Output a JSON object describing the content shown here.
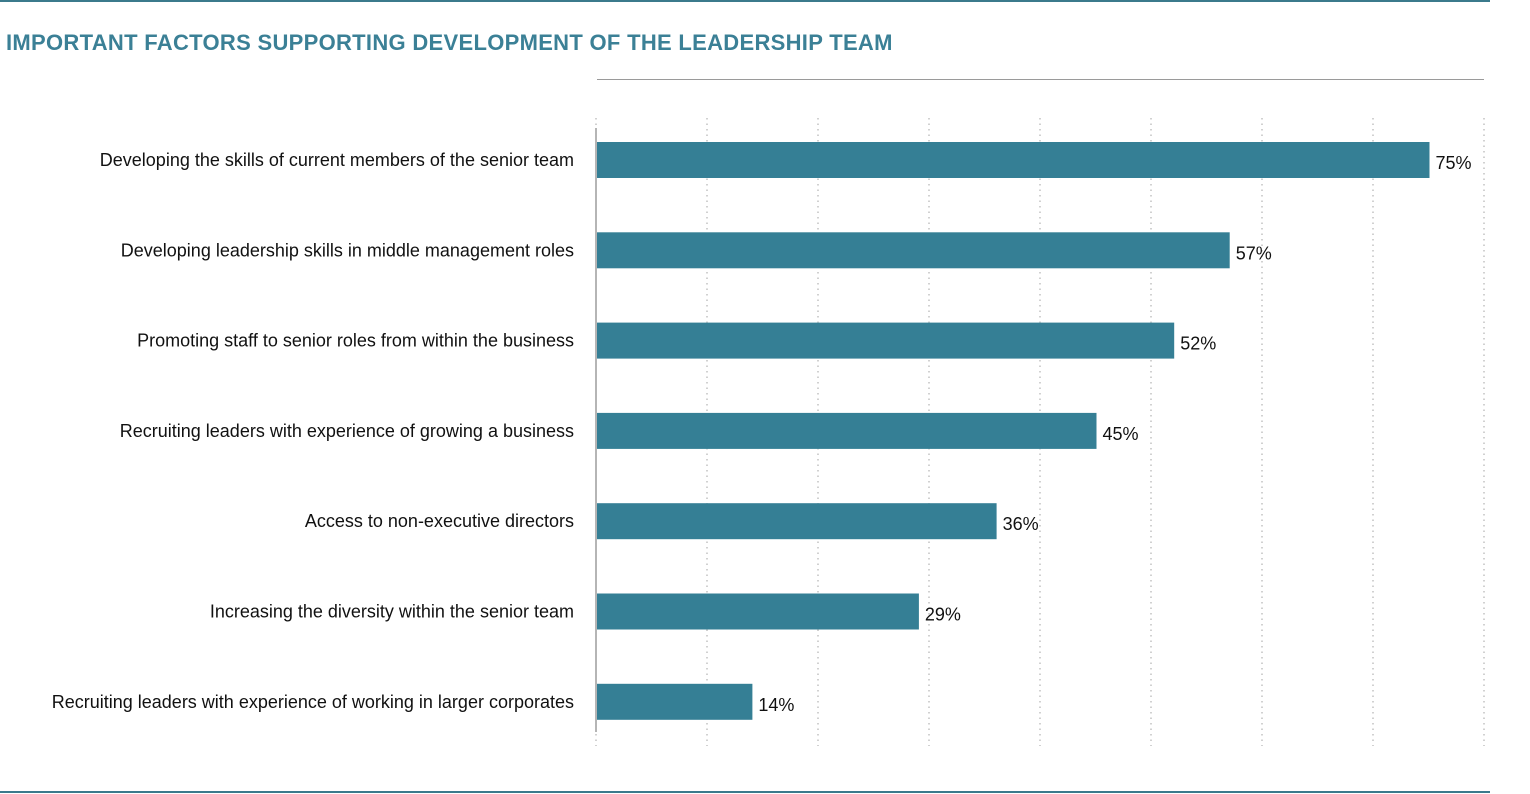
{
  "chart_data": {
    "type": "bar",
    "orientation": "horizontal",
    "title": "IMPORTANT FACTORS SUPPORTING DEVELOPMENT OF THE LEADERSHIP TEAM",
    "categories": [
      "Developing the skills of current members of the senior team",
      "Developing leadership skills in middle management roles",
      "Promoting staff to senior roles from within the business",
      "Recruiting leaders with experience of growing a business",
      "Access to non-executive directors",
      "Increasing the diversity within the senior team",
      "Recruiting leaders with experience of working in larger corporates"
    ],
    "values": [
      75,
      57,
      52,
      45,
      36,
      29,
      14
    ],
    "value_labels": [
      "75%",
      "57%",
      "52%",
      "45%",
      "36%",
      "29%",
      "14%"
    ],
    "unit": "%",
    "xlim": [
      0,
      80
    ],
    "grid": "vertical dotted",
    "bar_color": "#357f95",
    "title_color": "#3b8096",
    "rule_color": "#3b7a8c"
  }
}
